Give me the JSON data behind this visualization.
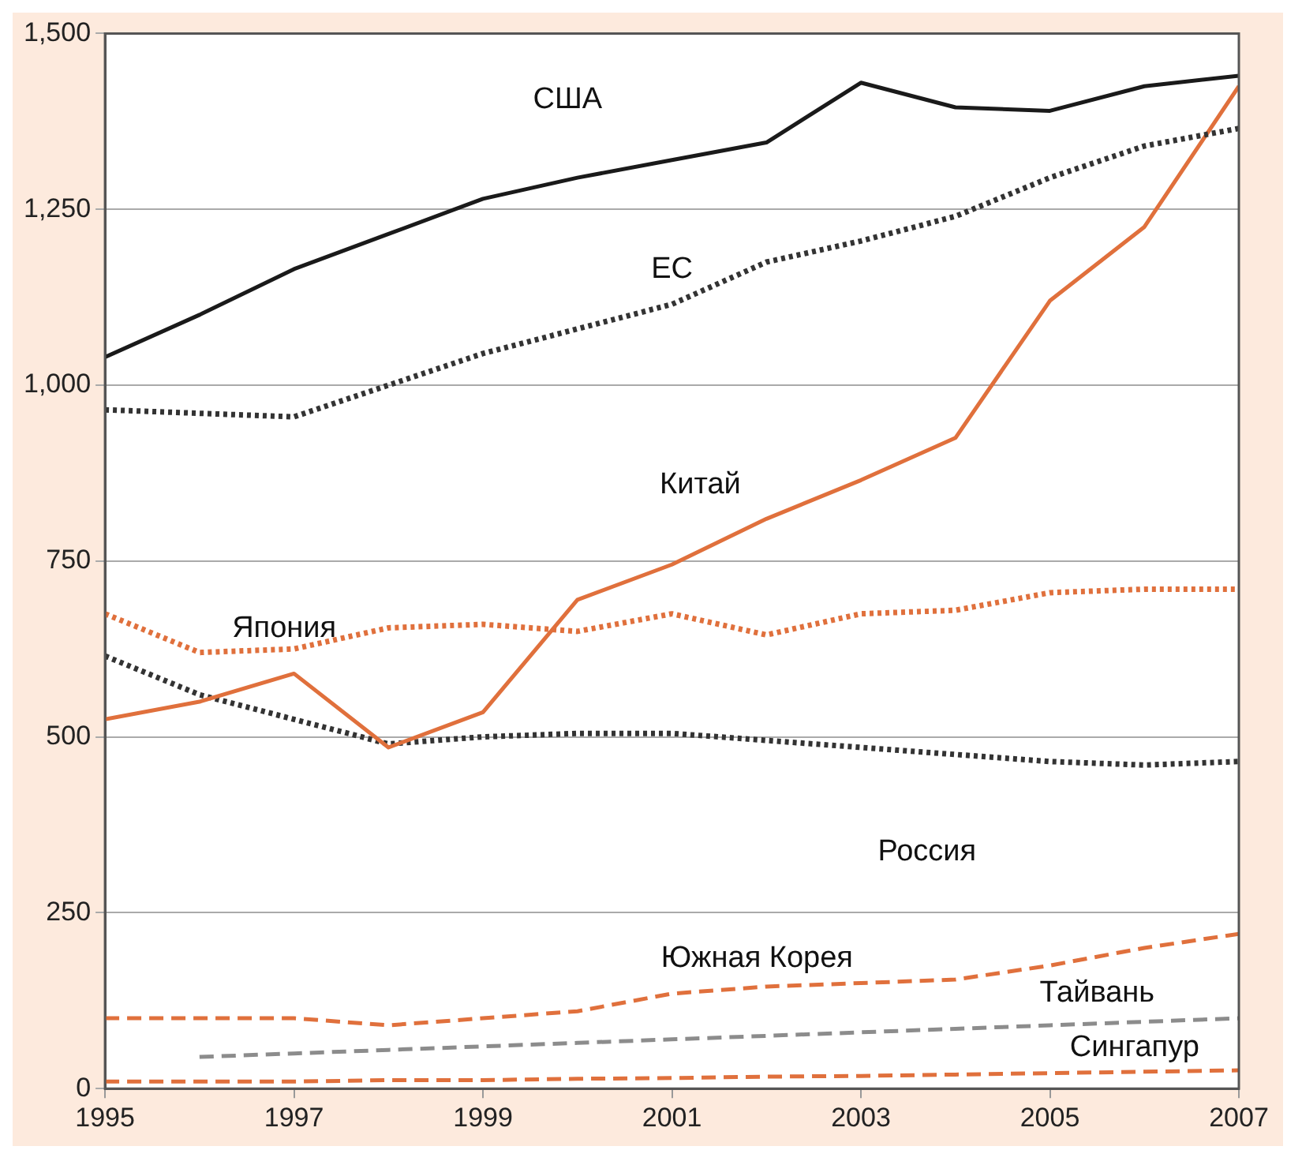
{
  "chart_data": {
    "type": "line",
    "x": [
      1995,
      1996,
      1997,
      1998,
      1999,
      2000,
      2001,
      2002,
      2003,
      2004,
      2005,
      2006,
      2007
    ],
    "series": [
      {
        "name": "США",
        "color": "#1a1a1a",
        "line_style": "solid",
        "values": [
          1040,
          1100,
          1165,
          1215,
          1265,
          1295,
          1320,
          1345,
          1430,
          1395,
          1390,
          1425,
          1440
        ]
      },
      {
        "name": "ЕС",
        "color": "#333333",
        "line_style": "dotted",
        "values": [
          965,
          960,
          955,
          1000,
          1045,
          1080,
          1115,
          1175,
          1205,
          1240,
          1295,
          1340,
          1365
        ]
      },
      {
        "name": "Китай",
        "color": "#e0703c",
        "line_style": "solid",
        "values": [
          525,
          550,
          590,
          485,
          535,
          695,
          745,
          810,
          865,
          925,
          1120,
          1225,
          1425
        ]
      },
      {
        "name": "Япония",
        "color": "#e0703c",
        "line_style": "dotted",
        "values": [
          675,
          620,
          625,
          655,
          660,
          650,
          675,
          645,
          675,
          680,
          705,
          710,
          710
        ]
      },
      {
        "name": "Россия",
        "color": "#333333",
        "line_style": "dotted",
        "values": [
          615,
          560,
          525,
          490,
          500,
          505,
          505,
          495,
          485,
          475,
          465,
          460,
          465
        ]
      },
      {
        "name": "Южная Корея",
        "color": "#e0703c",
        "line_style": "dashed",
        "values": [
          100,
          100,
          100,
          90,
          100,
          110,
          135,
          145,
          150,
          155,
          175,
          200,
          220
        ]
      },
      {
        "name": "Тайвань",
        "color": "#8c8c8c",
        "line_style": "dashed",
        "values": [
          null,
          45,
          50,
          55,
          60,
          65,
          70,
          75,
          80,
          85,
          90,
          95,
          100
        ]
      },
      {
        "name": "Сингапур",
        "color": "#e0703c",
        "line_style": "dashed",
        "values": [
          10,
          10,
          10,
          12,
          12,
          14,
          15,
          17,
          18,
          20,
          22,
          24,
          26
        ]
      }
    ],
    "xlim": [
      1995,
      2007
    ],
    "xticks": [
      1995,
      1997,
      1999,
      2001,
      2003,
      2005,
      2007
    ],
    "ylim": [
      0,
      1500
    ],
    "yticks": [
      0,
      250,
      500,
      750,
      {
        "value": 1000,
        "label": "1,000"
      },
      {
        "value": 1250,
        "label": "1,250"
      },
      {
        "value": 1500,
        "label": "1,500"
      }
    ],
    "grid": "y",
    "legend": false,
    "marker": "none"
  }
}
